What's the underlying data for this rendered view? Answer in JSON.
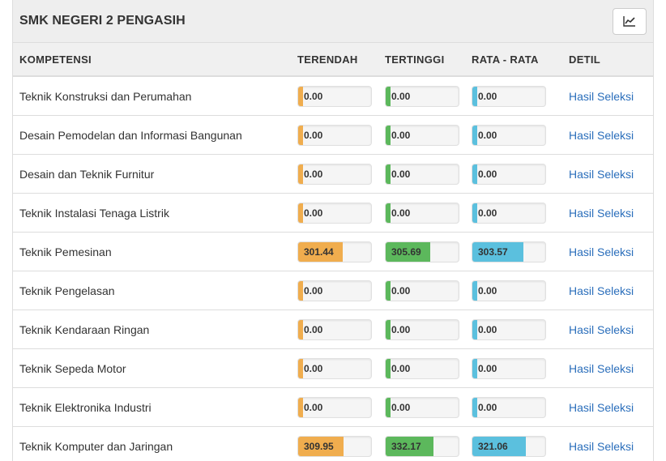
{
  "panel": {
    "title": "SMK NEGERI 2 PENGASIH",
    "chart_button_icon": "line-chart-icon"
  },
  "table": {
    "headers": {
      "kompetensi": "KOMPETENSI",
      "terendah": "TERENDAH",
      "tertinggi": "TERTINGGI",
      "rata": "RATA - RATA",
      "detil": "DETIL"
    },
    "link_label": "Hasil Seleksi",
    "rows": [
      {
        "name": "Teknik Konstruksi dan Perumahan",
        "terendah": "0.00",
        "tertinggi": "0.00",
        "rata": "0.00",
        "low_pct": 0,
        "high_pct": 0,
        "avg_pct": 0
      },
      {
        "name": "Desain Pemodelan dan Informasi Bangunan",
        "terendah": "0.00",
        "tertinggi": "0.00",
        "rata": "0.00",
        "low_pct": 0,
        "high_pct": 0,
        "avg_pct": 0
      },
      {
        "name": "Desain dan Teknik Furnitur",
        "terendah": "0.00",
        "tertinggi": "0.00",
        "rata": "0.00",
        "low_pct": 0,
        "high_pct": 0,
        "avg_pct": 0
      },
      {
        "name": "Teknik Instalasi Tenaga Listrik",
        "terendah": "0.00",
        "tertinggi": "0.00",
        "rata": "0.00",
        "low_pct": 0,
        "high_pct": 0,
        "avg_pct": 0
      },
      {
        "name": "Teknik Pemesinan",
        "terendah": "301.44",
        "tertinggi": "305.69",
        "rata": "303.57",
        "low_pct": 61,
        "high_pct": 61,
        "avg_pct": 70
      },
      {
        "name": "Teknik Pengelasan",
        "terendah": "0.00",
        "tertinggi": "0.00",
        "rata": "0.00",
        "low_pct": 0,
        "high_pct": 0,
        "avg_pct": 0
      },
      {
        "name": "Teknik Kendaraan Ringan",
        "terendah": "0.00",
        "tertinggi": "0.00",
        "rata": "0.00",
        "low_pct": 0,
        "high_pct": 0,
        "avg_pct": 0
      },
      {
        "name": "Teknik Sepeda Motor",
        "terendah": "0.00",
        "tertinggi": "0.00",
        "rata": "0.00",
        "low_pct": 0,
        "high_pct": 0,
        "avg_pct": 0
      },
      {
        "name": "Teknik Elektronika Industri",
        "terendah": "0.00",
        "tertinggi": "0.00",
        "rata": "0.00",
        "low_pct": 0,
        "high_pct": 0,
        "avg_pct": 0
      },
      {
        "name": "Teknik Komputer dan Jaringan",
        "terendah": "309.95",
        "tertinggi": "332.17",
        "rata": "321.06",
        "low_pct": 62,
        "high_pct": 66,
        "avg_pct": 73
      }
    ]
  },
  "colors": {
    "terendah": "#f0ad4e",
    "tertinggi": "#5cb85c",
    "rata": "#5bc0de",
    "link": "#2a6ebb"
  }
}
